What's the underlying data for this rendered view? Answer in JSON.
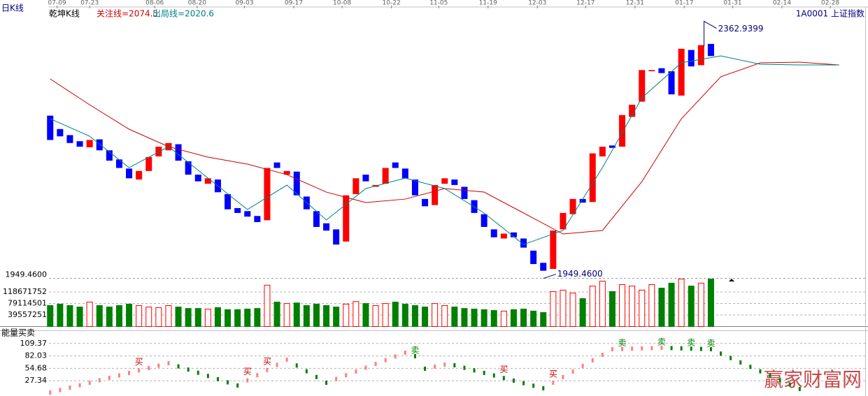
{
  "chart_data": [
    {
      "type": "candlestick",
      "period_label": "日K线",
      "title": "乾坤K线",
      "symbol": "1A0001 上证指数",
      "up_color": "#ff0000",
      "down_color": "#0000ff",
      "xlim": [
        -0.55,
        82.5
      ],
      "ylim": [
        1947.8,
        2395.7
      ],
      "yticks": [
        {
          "value": 1949.46,
          "label": "1949.4600"
        }
      ],
      "xticks": [
        {
          "value": 0.7,
          "label": "07-09"
        },
        {
          "value": 4,
          "label": "07-23"
        },
        {
          "value": 10.6,
          "label": "08-06"
        },
        {
          "value": 14.9,
          "label": "08-20"
        },
        {
          "value": 19.7,
          "label": "09-03"
        },
        {
          "value": 24.7,
          "label": "09-17"
        },
        {
          "value": 29.6,
          "label": "10-08"
        },
        {
          "value": 34.6,
          "label": "10-22"
        },
        {
          "value": 39.4,
          "label": "11-05"
        },
        {
          "value": 44.4,
          "label": "11-19"
        },
        {
          "value": 49.4,
          "label": "12-03"
        },
        {
          "value": 54.3,
          "label": "12-17"
        },
        {
          "value": 59.3,
          "label": "12-31"
        },
        {
          "value": 64.3,
          "label": "01-17"
        },
        {
          "value": 69.2,
          "label": "01-31"
        },
        {
          "value": 74.2,
          "label": "02-14"
        },
        {
          "value": 79.1,
          "label": "02-28"
        }
      ],
      "open": [
        2217,
        2195,
        2185,
        2175,
        2165,
        2178,
        2160,
        2145,
        2130,
        2112,
        2126,
        2150,
        2160,
        2170,
        2142,
        2120,
        2105,
        2112,
        2088,
        2065,
        2060,
        2052,
        2045,
        2140,
        2120,
        2125,
        2084,
        2060,
        2040,
        2030,
        2010,
        2088,
        2120,
        2100,
        2105,
        2140,
        2130,
        2112,
        2080,
        2070,
        2105,
        2112,
        2100,
        2078,
        2055,
        2030,
        2015,
        2025,
        2015,
        1995,
        1975,
        1965,
        2030,
        2055,
        2080,
        2075,
        2150,
        2168,
        2166,
        2215,
        2240,
        2290,
        2295,
        2290,
        2250,
        2325,
        2300,
        2335
      ],
      "close": [
        2177,
        2183,
        2172,
        2166,
        2177,
        2160,
        2143,
        2131,
        2114,
        2126,
        2149,
        2166,
        2172,
        2143,
        2120,
        2109,
        2114,
        2091,
        2063,
        2057,
        2051,
        2042,
        2131,
        2131,
        2126,
        2086,
        2063,
        2034,
        2028,
        2005,
        2086,
        2114,
        2109,
        2103,
        2131,
        2131,
        2114,
        2086,
        2068,
        2103,
        2114,
        2103,
        2080,
        2057,
        2034,
        2017,
        2023,
        2017,
        2000,
        1973,
        1962,
        2028,
        2057,
        2080,
        2074,
        2155,
        2166,
        2164,
        2218,
        2235,
        2292,
        2292,
        2287,
        2252,
        2327,
        2298,
        2333,
        2315
      ],
      "series": [
        {
          "name": "关注线=2074.5",
          "color": "#cc0000",
          "x": [
            0,
            4,
            8,
            12,
            16,
            20,
            24,
            28,
            32,
            36,
            40,
            44,
            48,
            52,
            56,
            60,
            64,
            68,
            72,
            76,
            80
          ],
          "values": [
            2277.4,
            2234.9,
            2194.7,
            2166.0,
            2148.8,
            2137.3,
            2120.0,
            2091.3,
            2074.1,
            2079.8,
            2097.1,
            2091.3,
            2056.9,
            2022.4,
            2028.2,
            2108.6,
            2211.9,
            2280.9,
            2303.8,
            2305.0,
            2300.4
          ]
        },
        {
          "name": "出局线=2020.6",
          "color": "#008080",
          "x": [
            0,
            4,
            8,
            12,
            16,
            20,
            24,
            28,
            32,
            36,
            40,
            44,
            48,
            52,
            56,
            60,
            64,
            68,
            72,
            76,
            80
          ],
          "values": [
            2211.9,
            2183.2,
            2131.5,
            2166.0,
            2114.3,
            2062.6,
            2102.8,
            2045.4,
            2097.1,
            2114.3,
            2097.1,
            2056.9,
            2005.2,
            2028.2,
            2131.5,
            2246.4,
            2303.8,
            2315.3,
            2301.5,
            2300.4,
            2300.4
          ]
        }
      ],
      "annotations": [
        {
          "x": 66.3,
          "value": 2362.9399,
          "label": "2362.9399"
        },
        {
          "x": 50,
          "value": 1949.46,
          "label": "1949.4600"
        }
      ]
    },
    {
      "type": "bar",
      "ylim": [
        0,
        162000000
      ],
      "yticks": [
        39557251,
        79114501,
        118671752
      ],
      "down_color": "#008000",
      "up_color": "#ff0000",
      "values": [
        72000000,
        77000000,
        72000000,
        67000000,
        84000000,
        72000000,
        67000000,
        72000000,
        77000000,
        72000000,
        67000000,
        65000000,
        72000000,
        67000000,
        62000000,
        62000000,
        60000000,
        65000000,
        58000000,
        58000000,
        60000000,
        62000000,
        142000000,
        84000000,
        79000000,
        81000000,
        72000000,
        77000000,
        72000000,
        67000000,
        77000000,
        86000000,
        79000000,
        72000000,
        79000000,
        84000000,
        77000000,
        72000000,
        67000000,
        79000000,
        72000000,
        67000000,
        62000000,
        60000000,
        58000000,
        55000000,
        53000000,
        58000000,
        60000000,
        53000000,
        48000000,
        120000000,
        125000000,
        115000000,
        96000000,
        139000000,
        156000000,
        120000000,
        144000000,
        139000000,
        125000000,
        144000000,
        132000000,
        149000000,
        163000000,
        139000000,
        149000000,
        163000000
      ]
    },
    {
      "type": "energy",
      "title": "能量买卖",
      "rise_color": "#ff8080",
      "fall_color": "#008000",
      "ylim": [
        0,
        136.7
      ],
      "yticks": [
        27.34,
        54.68,
        82.03,
        109.37
      ],
      "values": [
        1.5,
        6.9,
        12.3,
        17.6,
        23.0,
        28.4,
        33.8,
        39.1,
        44.5,
        49.9,
        55.3,
        60.6,
        66.0,
        59.0,
        52.0,
        45.0,
        37.9,
        30.9,
        23.9,
        16.9,
        28.3,
        39.6,
        51.0,
        62.3,
        73.7,
        61.0,
        48.3,
        35.6,
        23.0,
        31.3,
        39.5,
        47.8,
        56.1,
        64.3,
        72.6,
        80.8,
        89.1,
        81.4,
        53.8,
        58.4,
        63.0,
        61.4,
        55.8,
        50.2,
        44.6,
        39.0,
        33.3,
        27.7,
        22.1,
        16.4,
        10.8,
        23.1,
        35.4,
        47.7,
        60.0,
        72.2,
        84.5,
        96.8,
        97.4,
        98.0,
        98.6,
        99.2,
        99.8,
        99.2,
        98.6,
        98.0,
        97.4,
        96.8,
        87.1,
        77.3,
        67.6,
        57.9,
        48.1,
        38.4,
        28.7,
        18.9,
        9.2
      ],
      "signals": [
        {
          "index": 9,
          "label": "买"
        },
        {
          "index": 20,
          "label": "买"
        },
        {
          "index": 22,
          "label": "买"
        },
        {
          "index": 37,
          "label": "卖"
        },
        {
          "index": 46,
          "label": "买"
        },
        {
          "index": 51,
          "label": "买"
        },
        {
          "index": 58,
          "label": "卖"
        },
        {
          "index": 62,
          "label": "卖"
        },
        {
          "index": 65,
          "label": "卖"
        },
        {
          "index": 67,
          "label": "卖"
        }
      ],
      "watermark": "赢家财富网"
    }
  ]
}
